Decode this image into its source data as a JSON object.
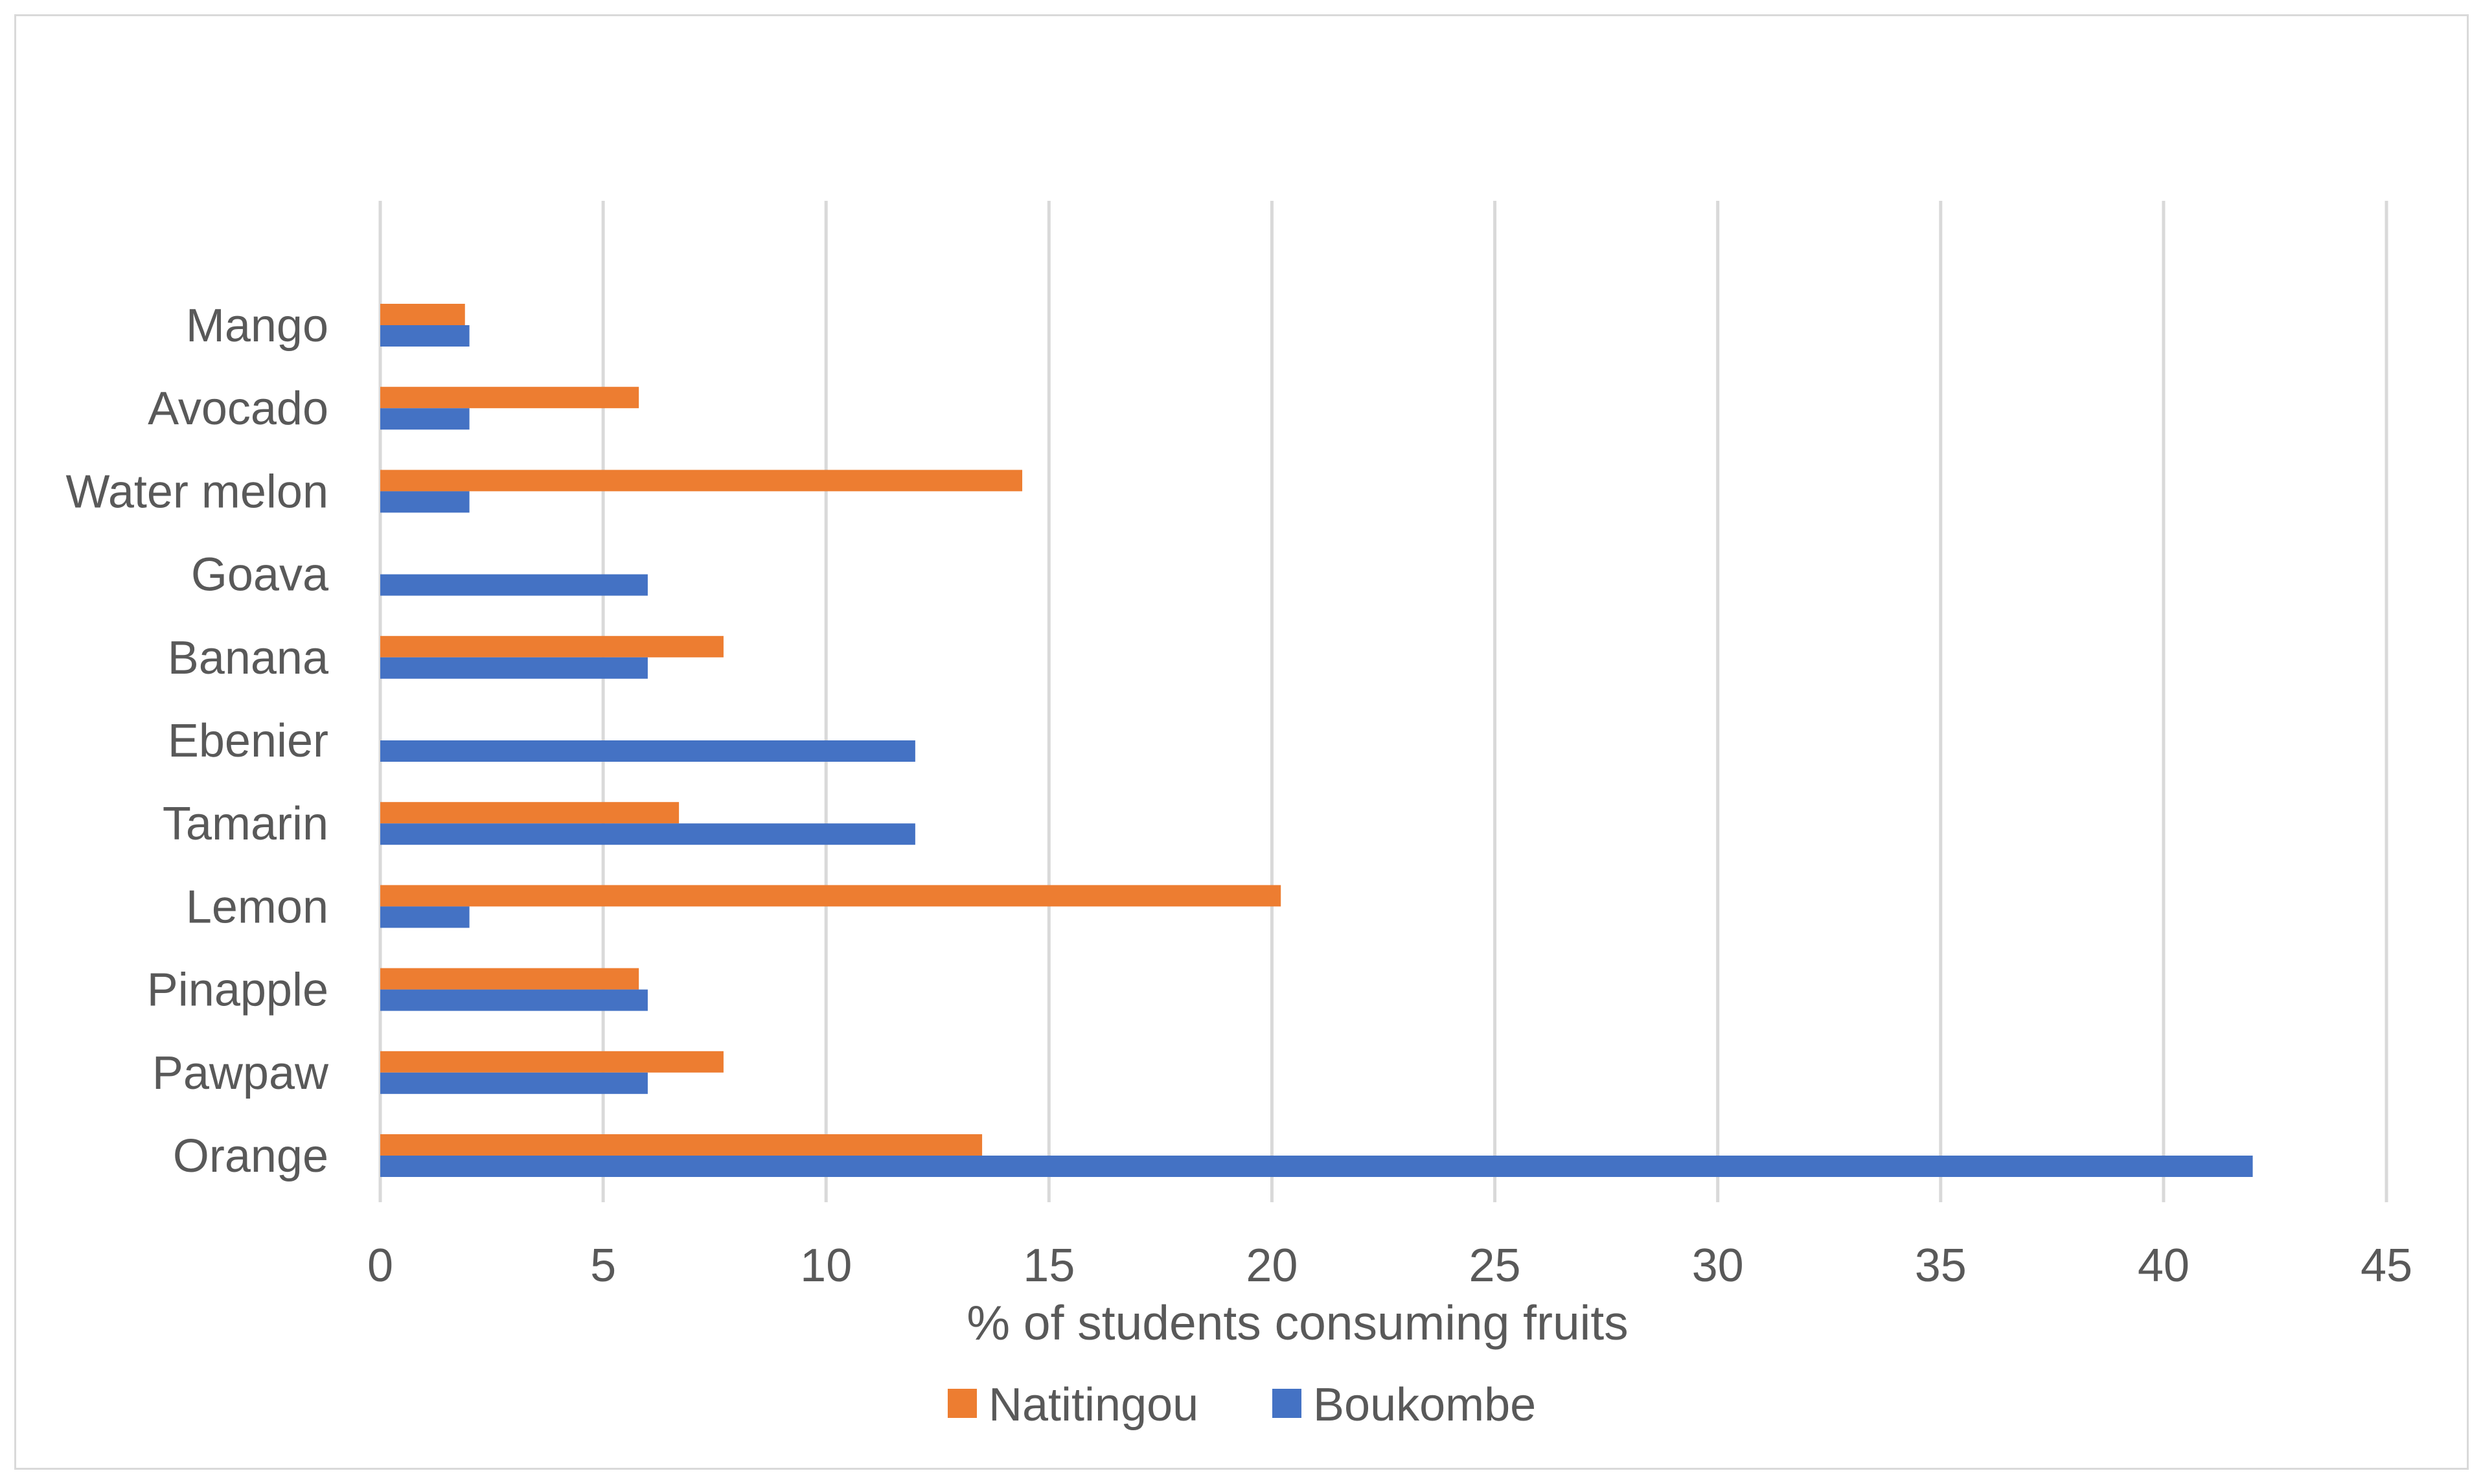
{
  "chart_data": {
    "type": "bar",
    "orientation": "horizontal",
    "title": "",
    "xlabel": "% of students consuming fruits",
    "ylabel": "",
    "xlim": [
      0,
      45
    ],
    "x_ticks": [
      0,
      5,
      10,
      15,
      20,
      25,
      30,
      35,
      40,
      45
    ],
    "grid": "vertical",
    "legend_position": "bottom",
    "categories": [
      "Mango",
      "Avocado",
      "Water melon",
      "Goava",
      "Banana",
      "Ebenier",
      "Tamarin",
      "Lemon",
      "Pinapple",
      "Pawpaw",
      "Orange"
    ],
    "series": [
      {
        "name": "Natitingou",
        "color": "#ED7D31",
        "values": [
          1.9,
          5.8,
          14.4,
          0,
          7.7,
          0,
          6.7,
          20.2,
          5.8,
          7.7,
          13.5
        ]
      },
      {
        "name": "Boukombe",
        "color": "#4472C4",
        "values": [
          2,
          2,
          2,
          6,
          6,
          12,
          12,
          2,
          6,
          6,
          42
        ]
      }
    ]
  },
  "colors": {
    "grid": "#d9d9d9",
    "text": "#595959",
    "frame": "#d9d9d9"
  }
}
